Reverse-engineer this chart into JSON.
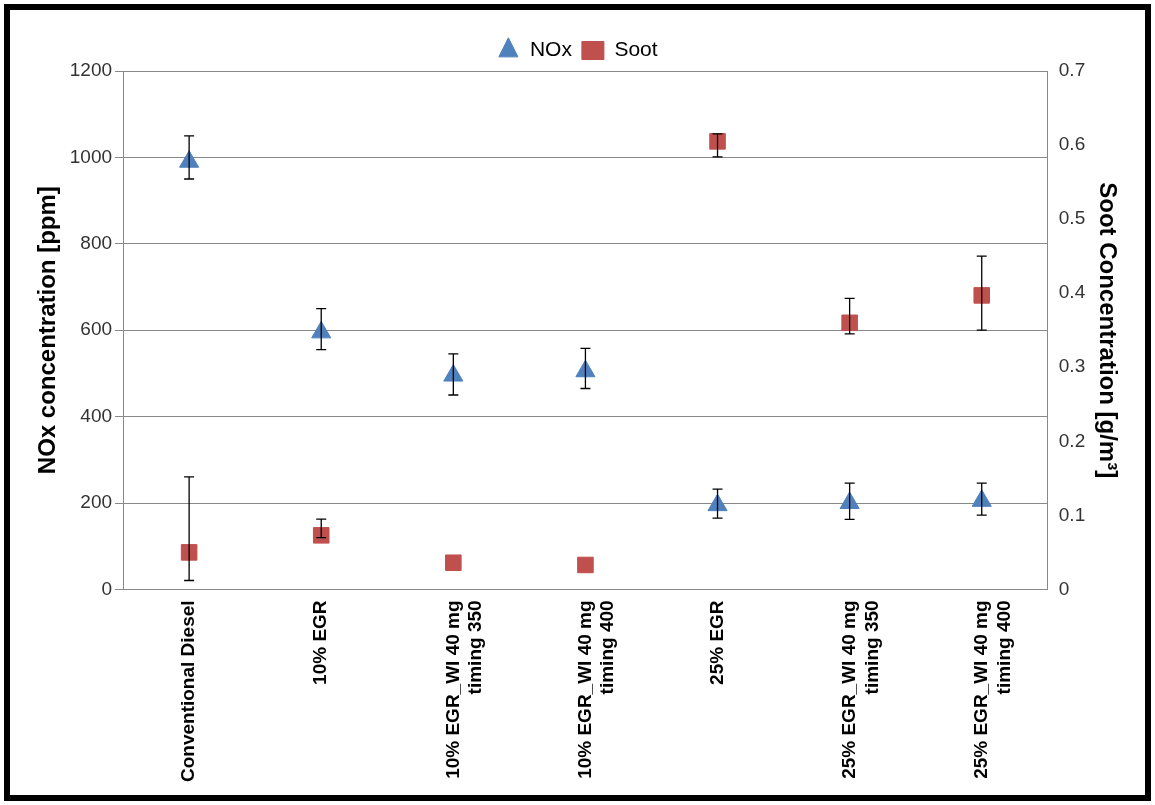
{
  "chart_data": {
    "type": "scatter",
    "categories": [
      "Conventional Diesel",
      "10% EGR",
      "10% EGR_WI 40 mg timing 350",
      "10% EGR_WI 40 mg timing 400",
      "25% EGR",
      "25% EGR_WI 40 mg timing 350",
      "25% EGR_WI 40 mg timing 400"
    ],
    "ylabel": "NOx concentration [ppm]",
    "y2label": "Soot Concentration [g/m³]",
    "series": [
      {
        "name": "NOx",
        "color": "#4f81bd",
        "marker": "triangle",
        "values": [
          990,
          595,
          495,
          505,
          195,
          200,
          205
        ],
        "errors": [
          [
            950,
            1050
          ],
          [
            555,
            650
          ],
          [
            450,
            545
          ],
          [
            465,
            558
          ],
          [
            165,
            232
          ],
          [
            162,
            246
          ],
          [
            172,
            246
          ]
        ]
      },
      {
        "name": "Soot",
        "color": "#c0504d",
        "marker": "square",
        "axis": "y2",
        "values": [
          0.05,
          0.073,
          0.036,
          0.033,
          0.605,
          0.36,
          0.397
        ],
        "errors": [
          [
            0.012,
            0.152
          ],
          [
            0.07,
            0.095
          ],
          null,
          null,
          [
            0.584,
            0.615
          ],
          [
            0.345,
            0.393
          ],
          [
            0.35,
            0.45
          ]
        ]
      }
    ],
    "ylim": [
      0,
      1200
    ],
    "yticks": [
      0,
      200,
      400,
      600,
      800,
      1000,
      1200
    ],
    "y2lim": [
      0,
      0.7
    ],
    "y2ticks": [
      0,
      0.1,
      0.2,
      0.3,
      0.4,
      0.5,
      0.6,
      0.7
    ],
    "grid": "y",
    "legend": "top"
  }
}
